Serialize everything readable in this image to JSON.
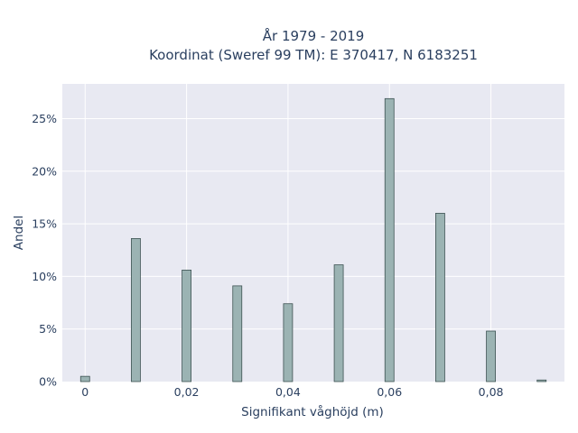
{
  "chart_data": {
    "type": "bar",
    "title": "År 1979 - 2019",
    "subtitle": "Koordinat (Sweref 99 TM): E 370417, N 6183251",
    "xlabel": "Signifikant våghöjd (m)",
    "ylabel": "Andel",
    "x": [
      0.0,
      0.01,
      0.02,
      0.03,
      0.04,
      0.05,
      0.06,
      0.07,
      0.08,
      0.09
    ],
    "values": [
      0.5,
      13.6,
      10.6,
      9.1,
      7.4,
      11.1,
      26.9,
      16.0,
      4.8,
      0.15
    ],
    "xlim": [
      -0.0045,
      0.0945
    ],
    "ylim": [
      0,
      28.3
    ],
    "x_ticks": [
      0,
      0.02,
      0.04,
      0.06,
      0.08
    ],
    "x_tick_labels": [
      "0",
      "0,02",
      "0,04",
      "0,06",
      "0,08"
    ],
    "y_ticks": [
      0,
      5,
      10,
      15,
      20,
      25
    ],
    "y_tick_labels": [
      "0%",
      "5%",
      "10%",
      "15%",
      "20%",
      "25%"
    ],
    "grid": true,
    "colors": {
      "bar_fill": "#9bb3b3",
      "bar_stroke": "#3d5252",
      "plot_bg": "#e8e9f2",
      "grid": "#ffffff",
      "text": "#2a3f5f"
    }
  }
}
